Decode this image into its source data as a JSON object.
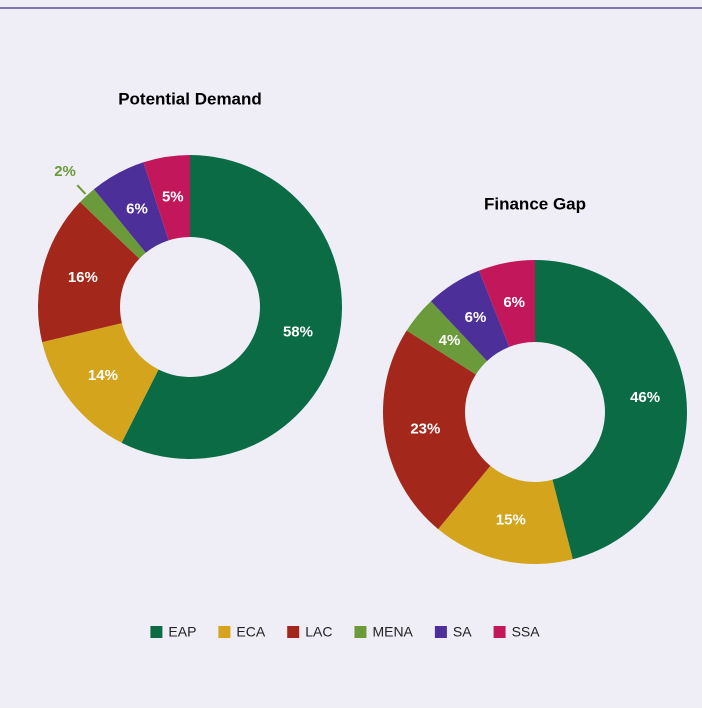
{
  "chart_data": [
    {
      "type": "pie",
      "title": "Potential Demand",
      "categories": [
        "EAP",
        "ECA",
        "LAC",
        "MENA",
        "SA",
        "SSA"
      ],
      "values": [
        58,
        14,
        16,
        2,
        6,
        5
      ],
      "value_labels": [
        "58%",
        "14%",
        "16%",
        "2%",
        "6%",
        "5%"
      ],
      "colors": [
        "#0a6b45",
        "#d4a41c",
        "#a3281b",
        "#6a9a3a",
        "#4c2f98",
        "#c2185b"
      ]
    },
    {
      "type": "pie",
      "title": "Finance Gap",
      "categories": [
        "EAP",
        "ECA",
        "LAC",
        "MENA",
        "SA",
        "SSA"
      ],
      "values": [
        46,
        15,
        23,
        4,
        6,
        6
      ],
      "value_labels": [
        "46%",
        "15%",
        "23%",
        "4%",
        "6%",
        "6%"
      ],
      "colors": [
        "#0a6b45",
        "#d4a41c",
        "#a3281b",
        "#6a9a3a",
        "#4c2f98",
        "#c2185b"
      ]
    }
  ]
}
